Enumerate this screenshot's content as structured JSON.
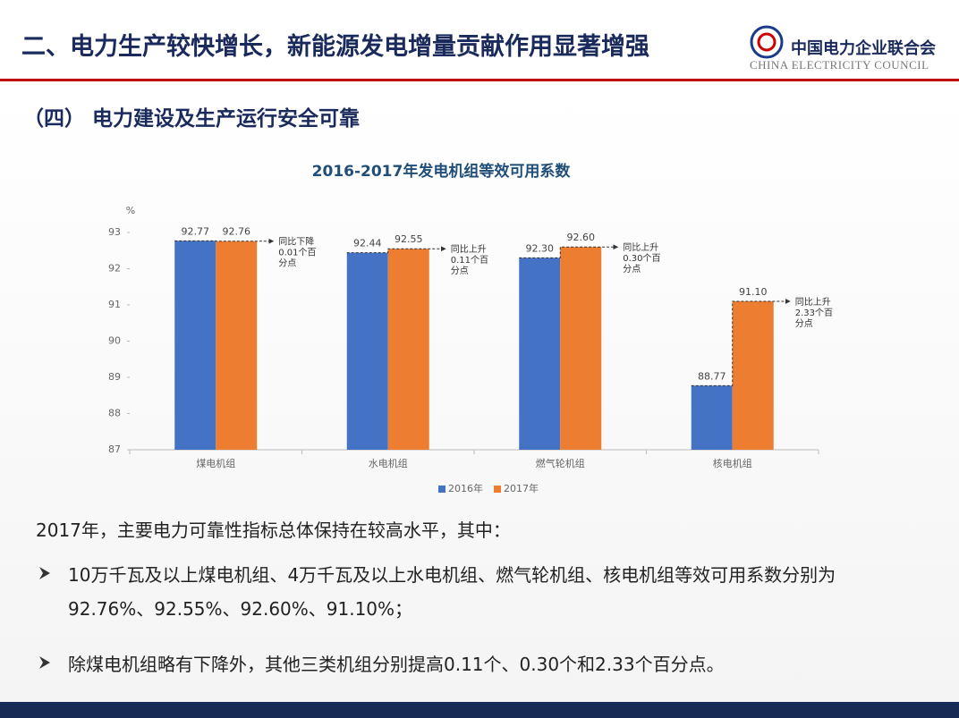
{
  "header": {
    "title": "二、电力生产较快增长，新能源发电增量贡献作用显著增强",
    "org_name": "中国电力企业联合会",
    "org_name_en": "CHINA ELECTRICITY COUNCIL"
  },
  "subtitle": "（四） 电力建设及生产运行安全可靠",
  "chart_data": {
    "type": "bar",
    "title": "2016-2017年发电机组等效可用系数",
    "y_unit": "%",
    "categories": [
      "煤电机组",
      "水电机组",
      "燃气轮机组",
      "核电机组"
    ],
    "series": [
      {
        "name": "2016年",
        "color": "#4472c4",
        "values": [
          92.77,
          92.44,
          92.3,
          88.77
        ],
        "value_labels": [
          "92.77",
          "92.44",
          "92.30",
          "88.77"
        ]
      },
      {
        "name": "2017年",
        "color": "#ed7d31",
        "values": [
          92.76,
          92.55,
          92.6,
          91.1
        ],
        "value_labels": [
          "92.76",
          "92.55",
          "92.60",
          "91.10"
        ]
      }
    ],
    "annotations": [
      [
        "同比下降",
        "0.01个百",
        "分点"
      ],
      [
        "同比上升",
        "0.11个百",
        "分点"
      ],
      [
        "同比上升",
        "0.30个百",
        "分点"
      ],
      [
        "同比上升",
        "2.33个百",
        "分点"
      ]
    ],
    "ylim": [
      87,
      93
    ],
    "yticks": [
      87,
      88,
      89,
      90,
      91,
      92,
      93
    ],
    "grid": false,
    "legend": "bottom"
  },
  "body": {
    "intro": "2017年，主要电力可靠性指标总体保持在较高水平，其中：",
    "bullets": [
      "10万千瓦及以上煤电机组、4万千瓦及以上水电机组、燃气轮机组、核电机组等效可用系数分别为92.76%、92.55%、92.60%、91.10%；",
      "除煤电机组略有下降外，其他三类机组分别提高0.11个、0.30个和2.33个百分点。"
    ]
  }
}
